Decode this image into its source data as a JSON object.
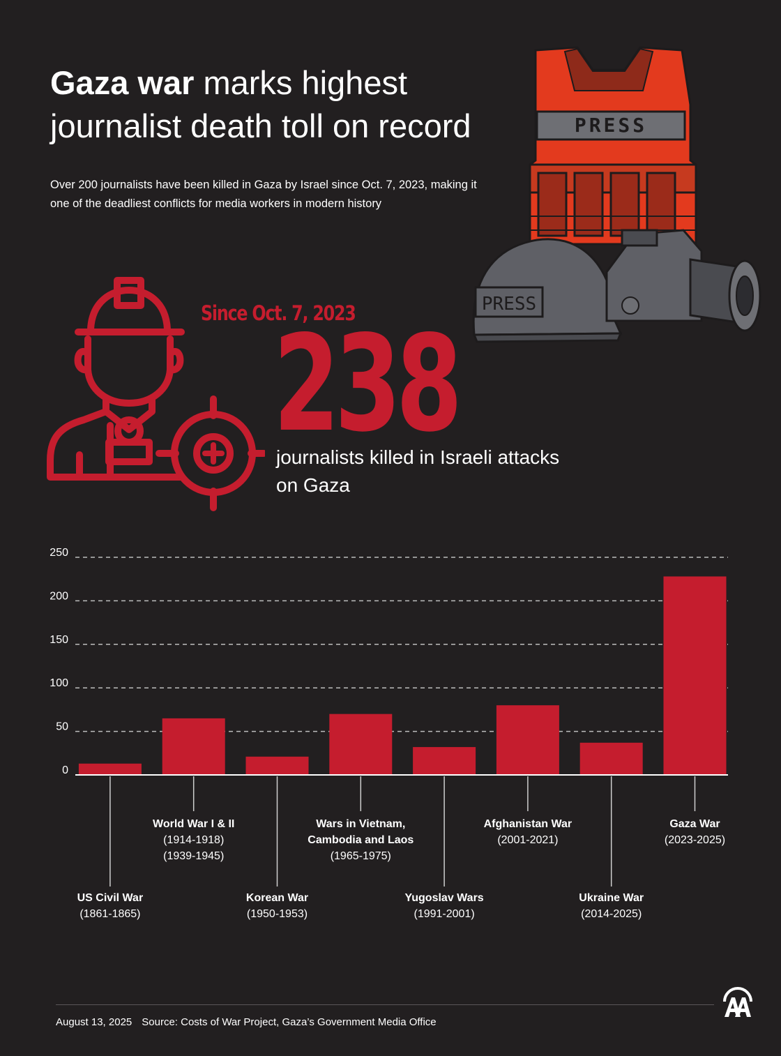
{
  "title": {
    "bold": "Gaza war",
    "rest": "marks highest journalist death toll on record"
  },
  "subtitle": "Over 200 journalists have been killed in Gaza by Israel since Oct. 7, 2023, making it one of the deadliest conflicts for media workers in modern history",
  "headline_stat": {
    "since": "Since Oct. 7, 2023",
    "number": "238",
    "caption": "journalists killed in Israeli attacks on Gaza"
  },
  "illustration": {
    "vest_label": "PRESS",
    "helmet_label": "PRESS"
  },
  "colors": {
    "background": "#221f20",
    "accent": "#c51d2e",
    "text": "#ffffff",
    "gear_gray": "#5f6066"
  },
  "icons": [
    "journalist-with-helmet-icon",
    "crosshair-icon",
    "press-vest-icon",
    "helmet-icon",
    "camera-icon",
    "aa-logo-icon"
  ],
  "chart_data": {
    "type": "bar",
    "yticks": [
      0,
      50,
      100,
      150,
      200,
      250
    ],
    "ylim": [
      0,
      250
    ],
    "grid": true,
    "categories": [
      {
        "name": "US Civil War",
        "years": [
          "(1861-1865)"
        ],
        "value": 13,
        "label_pos": "low"
      },
      {
        "name": "World War I & II",
        "years": [
          "(1914-1918)",
          "(1939-1945)"
        ],
        "value": 65,
        "label_pos": "high"
      },
      {
        "name": "Korean War",
        "years": [
          "(1950-1953)"
        ],
        "value": 21,
        "label_pos": "low"
      },
      {
        "name": "Wars in Vietnam,",
        "name2": "Cambodia and Laos",
        "years": [
          "(1965-1975)"
        ],
        "value": 70,
        "label_pos": "high"
      },
      {
        "name": "Yugoslav Wars",
        "years": [
          "(1991-2001)"
        ],
        "value": 32,
        "label_pos": "low"
      },
      {
        "name": "Afghanistan War",
        "years": [
          "(2001-2021)"
        ],
        "value": 80,
        "label_pos": "high"
      },
      {
        "name": "Ukraine War",
        "years": [
          "(2014-2025)"
        ],
        "value": 37,
        "label_pos": "low"
      },
      {
        "name": "Gaza War",
        "years": [
          "(2023-2025)"
        ],
        "value": 228,
        "label_pos": "high"
      }
    ]
  },
  "footer": {
    "date": "August 13, 2025",
    "source": "Source: Costs of War Project, Gaza’s Government Media Office"
  }
}
